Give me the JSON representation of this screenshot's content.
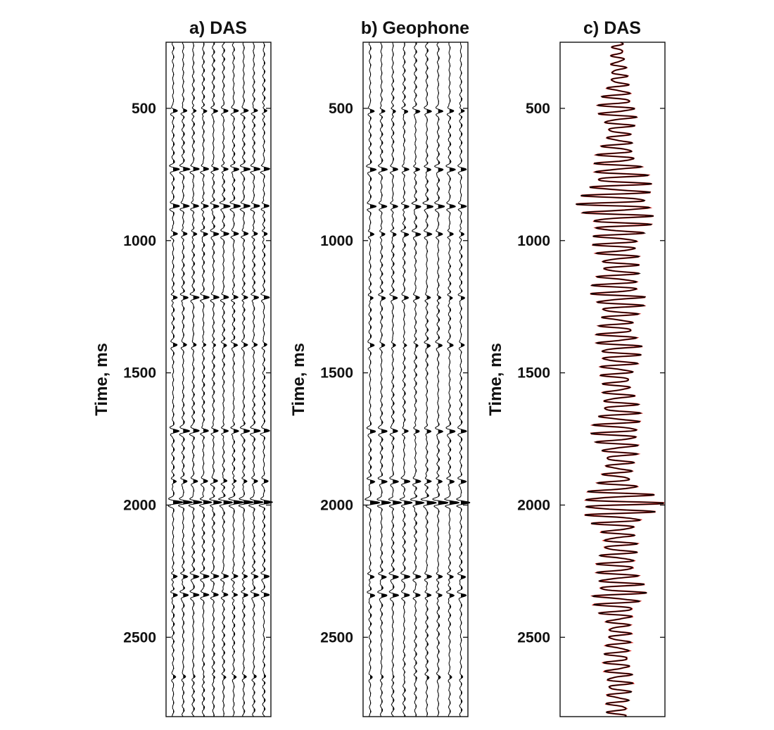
{
  "figure": {
    "colors": {
      "trace": "#000000",
      "overlay": "#e0201b",
      "axis": "#111111",
      "background": "#ffffff"
    }
  },
  "chart_data": [
    {
      "type": "line",
      "title": "a) DAS",
      "ylabel": "Time, ms",
      "xlabel": "",
      "ylim": [
        2800,
        250
      ],
      "yticks": [
        500,
        1000,
        1500,
        2000,
        2500
      ],
      "yticklabels": [
        "500",
        "1000",
        "1500",
        "2000",
        "2500"
      ],
      "y_direction": "reversed (time increases downward)",
      "grid": false,
      "variable_area_fill": true,
      "trace_count": 10,
      "events_ms": [
        {
          "t": 510,
          "amp": 0.6
        },
        {
          "t": 730,
          "amp": 0.8
        },
        {
          "t": 870,
          "amp": 0.85
        },
        {
          "t": 975,
          "amp": 0.65
        },
        {
          "t": 1215,
          "amp": 0.75
        },
        {
          "t": 1395,
          "amp": 0.45
        },
        {
          "t": 1720,
          "amp": 0.75
        },
        {
          "t": 1910,
          "amp": 0.55
        },
        {
          "t": 1990,
          "amp": 1.3
        },
        {
          "t": 2270,
          "amp": 0.7
        },
        {
          "t": 2340,
          "amp": 0.7
        },
        {
          "t": 2650,
          "amp": 0.3
        }
      ]
    },
    {
      "type": "line",
      "title": "b) Geophone",
      "ylabel": "Time, ms",
      "xlabel": "",
      "ylim": [
        2800,
        250
      ],
      "yticks": [
        500,
        1000,
        1500,
        2000,
        2500
      ],
      "yticklabels": [
        "500",
        "1000",
        "1500",
        "2000",
        "2500"
      ],
      "y_direction": "reversed (time increases downward)",
      "grid": false,
      "variable_area_fill": true,
      "trace_count": 9,
      "events_ms": [
        {
          "t": 510,
          "amp": 0.6
        },
        {
          "t": 730,
          "amp": 0.7
        },
        {
          "t": 870,
          "amp": 0.8
        },
        {
          "t": 975,
          "amp": 0.6
        },
        {
          "t": 1215,
          "amp": 0.55
        },
        {
          "t": 1395,
          "amp": 0.45
        },
        {
          "t": 1720,
          "amp": 0.65
        },
        {
          "t": 1910,
          "amp": 0.75
        },
        {
          "t": 1990,
          "amp": 1.3
        },
        {
          "t": 2270,
          "amp": 0.7
        },
        {
          "t": 2340,
          "amp": 0.7
        },
        {
          "t": 2650,
          "amp": 0.25
        }
      ]
    },
    {
      "type": "line",
      "title": "c) DAS",
      "ylabel": "Time, ms",
      "xlabel": "",
      "ylim": [
        2800,
        250
      ],
      "yticks": [
        500,
        1000,
        1500,
        2000,
        2500
      ],
      "yticklabels": [
        "500",
        "1000",
        "1500",
        "2000",
        "2500"
      ],
      "y_direction": "reversed (time increases downward)",
      "grid": false,
      "series": [
        {
          "name": "DAS trace",
          "color": "#000000"
        },
        {
          "name": "overlay trace",
          "color": "#e0201b"
        }
      ],
      "amplitude_range": [
        -1,
        1
      ],
      "envelope_ms": [
        {
          "t": 250,
          "amp": 0.12
        },
        {
          "t": 400,
          "amp": 0.2
        },
        {
          "t": 510,
          "amp": 0.45
        },
        {
          "t": 600,
          "amp": 0.25
        },
        {
          "t": 730,
          "amp": 0.55
        },
        {
          "t": 870,
          "amp": 0.85
        },
        {
          "t": 975,
          "amp": 0.55
        },
        {
          "t": 1100,
          "amp": 0.4
        },
        {
          "t": 1215,
          "amp": 0.6
        },
        {
          "t": 1300,
          "amp": 0.35
        },
        {
          "t": 1395,
          "amp": 0.5
        },
        {
          "t": 1550,
          "amp": 0.3
        },
        {
          "t": 1720,
          "amp": 0.55
        },
        {
          "t": 1850,
          "amp": 0.3
        },
        {
          "t": 1910,
          "amp": 0.35
        },
        {
          "t": 1990,
          "amp": 1.0
        },
        {
          "t": 2100,
          "amp": 0.35
        },
        {
          "t": 2270,
          "amp": 0.45
        },
        {
          "t": 2340,
          "amp": 0.6
        },
        {
          "t": 2450,
          "amp": 0.25
        },
        {
          "t": 2650,
          "amp": 0.3
        },
        {
          "t": 2800,
          "amp": 0.22
        }
      ]
    }
  ]
}
